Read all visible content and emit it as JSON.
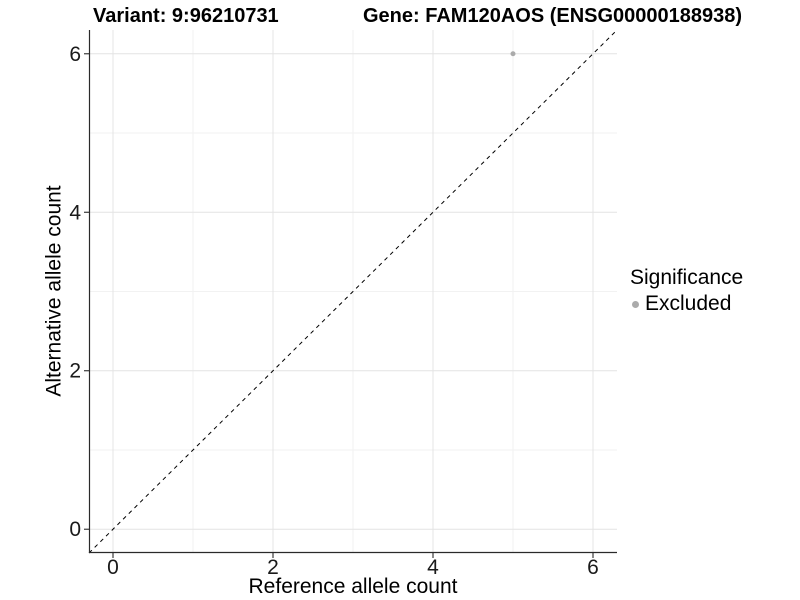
{
  "chart_data": {
    "type": "scatter",
    "title_left": "Variant: 9:96210731",
    "title_right": "Gene: FAM120AOS (ENSG00000188938)",
    "xlabel": "Reference allele count",
    "ylabel": "Alternative allele count",
    "xlim": [
      -0.3,
      6.3
    ],
    "ylim": [
      -0.3,
      6.3
    ],
    "x_ticks": [
      0,
      2,
      4,
      6
    ],
    "y_ticks": [
      0,
      2,
      4,
      6
    ],
    "x_minor_ticks": [
      1,
      3,
      5
    ],
    "y_minor_ticks": [
      1,
      3,
      5
    ],
    "grid": "major and minor gridlines on white panel",
    "legend_position": "right",
    "legend_title": "Significance",
    "series": [
      {
        "name": "Excluded",
        "color": "#ababab",
        "marker": "circle",
        "points": [
          [
            5,
            6
          ]
        ]
      }
    ],
    "annotations": [
      {
        "type": "reference-line",
        "meaning": "identity line y = x",
        "style": "dashed",
        "color": "#000000",
        "from": [
          -0.3,
          -0.3
        ],
        "to": [
          6.3,
          6.3
        ]
      }
    ],
    "colors": {
      "panel_background": "#ffffff",
      "grid_major": "#e4e4e4",
      "grid_minor": "#f2f2f2",
      "axis_line": "#2a2a2a",
      "tick_text": "#1a1a1a",
      "point": "#ababab"
    }
  }
}
